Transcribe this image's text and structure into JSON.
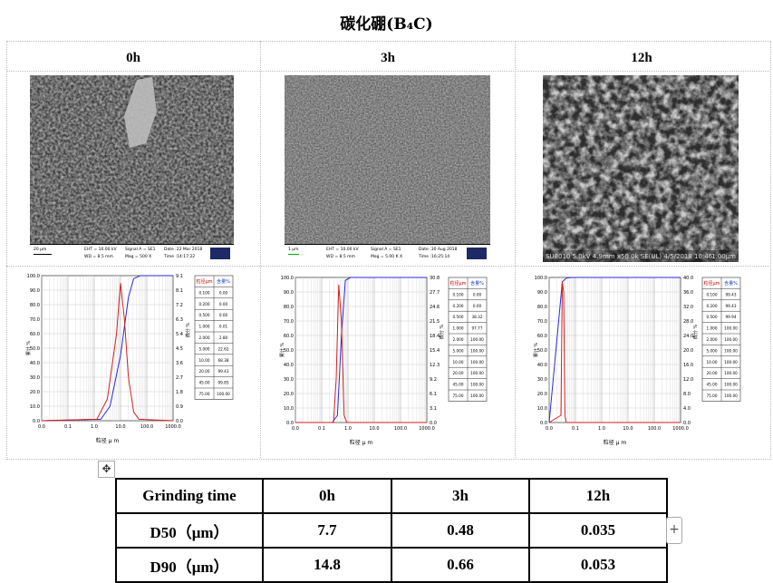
{
  "title": "碳化硼(B₄C)",
  "columns": [
    "0h",
    "3h",
    "12h"
  ],
  "sem_images": [
    {
      "scale": "20 µm",
      "eht": "EHT = 10.00 kV",
      "wd": "WD = 8.5 mm",
      "signal": "Signal A = SE1",
      "mag": "Mag = 500 X",
      "date": "Date :22 Mar 2018",
      "time": "Time :14:17:22"
    },
    {
      "scale": "1 µm",
      "eht": "EHT = 10.00 kV",
      "wd": "WD = 8.5 mm",
      "signal": "Signal A = SE1",
      "mag": "Mag = 5.00 K X",
      "date": "Date :30 Aug 2018",
      "time": "Time :16:25:14"
    },
    {
      "banner": "SU8010 5.0kV 4.9mm x50.0k SE(UL) 4/5/2018 10:46",
      "scale": "1.00µm"
    }
  ],
  "psd_tables": [
    {
      "rows": [
        [
          "0.100",
          "0.00"
        ],
        [
          "0.200",
          "0.00"
        ],
        [
          "0.500",
          "0.00"
        ],
        [
          "1.000",
          "0.01"
        ],
        [
          "2.000",
          "2.80"
        ],
        [
          "5.000",
          "22.62"
        ],
        [
          "10.00",
          "68.38"
        ],
        [
          "20.00",
          "99.43"
        ],
        [
          "45.00",
          "99.85"
        ],
        [
          "75.00",
          "100.00"
        ]
      ]
    },
    {
      "rows": [
        [
          "0.100",
          "0.00"
        ],
        [
          "0.200",
          "0.00"
        ],
        [
          "0.500",
          "38.32"
        ],
        [
          "1.000",
          "97.77"
        ],
        [
          "2.000",
          "100.00"
        ],
        [
          "5.000",
          "100.00"
        ],
        [
          "10.00",
          "100.00"
        ],
        [
          "20.00",
          "100.00"
        ],
        [
          "45.00",
          "100.00"
        ],
        [
          "75.00",
          "100.00"
        ]
      ]
    },
    {
      "rows": [
        [
          "0.100",
          "99.43"
        ],
        [
          "0.200",
          "99.43"
        ],
        [
          "0.500",
          "99.94"
        ],
        [
          "1.000",
          "100.00"
        ],
        [
          "2.000",
          "100.00"
        ],
        [
          "5.000",
          "100.00"
        ],
        [
          "10.00",
          "100.00"
        ],
        [
          "20.00",
          "100.00"
        ],
        [
          "45.00",
          "100.00"
        ],
        [
          "75.00",
          "100.00"
        ]
      ]
    }
  ],
  "psd_table_header": [
    "粒径µm",
    "含量%"
  ],
  "psd_axis": {
    "xlabel": "粒径 µ m",
    "ylabel": "累计 %",
    "y2label": "微分 %",
    "xticks": [
      "0.0",
      "0.1",
      "1.0",
      "10.0",
      "100.0",
      "1000.0"
    ],
    "yticks": [
      "100.0",
      "90.0",
      "80.0",
      "70.0",
      "60.0",
      "50.0",
      "40.0",
      "30.0",
      "20.0",
      "10.0",
      "0.0"
    ],
    "y2ticks": [
      [
        "9.1",
        "8.1",
        "7.2",
        "6.3",
        "5.4",
        "4.5",
        "3.6",
        "2.7",
        "1.8",
        "0.9",
        "0.0"
      ],
      [
        "30.8",
        "27.7",
        "24.6",
        "21.5",
        "18.4",
        "15.4",
        "12.3",
        "9.2",
        "6.1",
        "3.1",
        "0.0"
      ],
      [
        "40.0",
        "36.0",
        "32.0",
        "28.0",
        "24.0",
        "20.0",
        "16.0",
        "12.0",
        "8.0",
        "4.0",
        "0.0"
      ]
    ],
    "xticks3": [
      "0.0",
      "0.1",
      "1.0",
      "10.0",
      "100.0",
      "1000.0"
    ]
  },
  "summary_table": {
    "header": [
      "Grinding time",
      "0h",
      "3h",
      "12h"
    ],
    "rows": [
      [
        "D50（μm）",
        "7.7",
        "0.48",
        "0.035"
      ],
      [
        "D90（μm）",
        "14.8",
        "0.66",
        "0.053"
      ]
    ]
  },
  "colors": {
    "cumulative": "#2a2ae0",
    "differential": "#d42020",
    "table_header_red": "#cc0000",
    "table_header_blue": "#1a3ccc"
  }
}
